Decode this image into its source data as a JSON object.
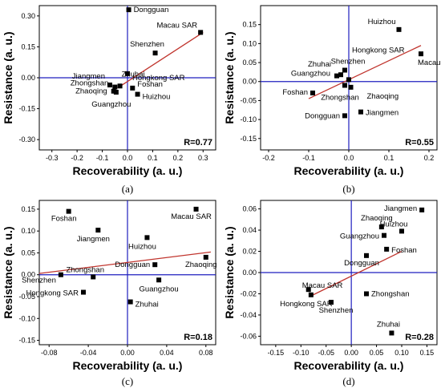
{
  "chart_data": [
    {
      "type": "scatter",
      "panel_label": "(a)",
      "xlabel": "Recoverability (a. u.)",
      "ylabel": "Resistance (a. u.)",
      "xlim": [
        -0.35,
        0.35
      ],
      "ylim": [
        -0.35,
        0.35
      ],
      "xticks": [
        -0.3,
        -0.2,
        -0.1,
        0.0,
        0.1,
        0.2,
        0.3
      ],
      "xtick_labels": [
        "-0.3",
        "-0.2",
        "-0.1",
        "0.0",
        "0.1",
        "0.2",
        "0.3"
      ],
      "yticks": [
        -0.3,
        -0.15,
        0.0,
        0.15,
        0.3
      ],
      "ytick_labels": [
        "-0.30",
        "-0.15",
        "0.00",
        "0.15",
        "0.30"
      ],
      "r_text": "R=0.77",
      "fit": {
        "x": [
          -0.04,
          0.3
        ],
        "y": [
          -0.05,
          0.22
        ]
      },
      "points": [
        {
          "name": "Dongguan",
          "x": 0.005,
          "y": 0.33
        },
        {
          "name": "Macau SAR",
          "x": 0.29,
          "y": 0.22
        },
        {
          "name": "Shenzhen",
          "x": 0.11,
          "y": 0.12
        },
        {
          "name": "Hongkong  SAR",
          "x": 0.0,
          "y": 0.02
        },
        {
          "name": "Jiangmen",
          "x": -0.07,
          "y": -0.035
        },
        {
          "name": "Zhuhai",
          "x": -0.03,
          "y": -0.04
        },
        {
          "name": "Foshan",
          "x": 0.02,
          "y": -0.05
        },
        {
          "name": "Huizhou",
          "x": 0.04,
          "y": -0.08
        },
        {
          "name": "Zhongshan",
          "x": -0.05,
          "y": -0.045
        },
        {
          "name": "Zhaoqing",
          "x": -0.055,
          "y": -0.065
        },
        {
          "name": "Guangzhou",
          "x": -0.045,
          "y": -0.07
        }
      ]
    },
    {
      "type": "scatter",
      "panel_label": "(b)",
      "xlabel": "Recoverability (a. u.)",
      "ylabel": "Resistance (a. u.)",
      "xlim": [
        -0.22,
        0.22
      ],
      "ylim": [
        -0.18,
        0.2
      ],
      "xticks": [
        -0.2,
        -0.1,
        0.0,
        0.1,
        0.2
      ],
      "xtick_labels": [
        "-0.2",
        "-0.1",
        "0.0",
        "0.1",
        "0.2"
      ],
      "yticks": [
        -0.15,
        -0.1,
        -0.05,
        0.0,
        0.05,
        0.1,
        0.15
      ],
      "ytick_labels": [
        "-0.15",
        "-0.10",
        "-0.05",
        "0.00",
        "0.05",
        "0.10",
        "0.15"
      ],
      "r_text": "R=0.55",
      "fit": {
        "x": [
          -0.1,
          0.18
        ],
        "y": [
          -0.045,
          0.095
        ]
      },
      "points": [
        {
          "name": "Huizhou",
          "x": 0.125,
          "y": 0.137
        },
        {
          "name": "Hongkong SAR",
          "x": 0.0,
          "y": 0.005
        },
        {
          "name": "Macau SAR",
          "x": 0.18,
          "y": 0.073
        },
        {
          "name": "Shenzhen",
          "x": -0.01,
          "y": 0.03
        },
        {
          "name": "Zhuhai",
          "x": -0.02,
          "y": 0.018
        },
        {
          "name": "Guangzhou",
          "x": -0.03,
          "y": 0.015
        },
        {
          "name": "Foshan",
          "x": -0.09,
          "y": -0.03
        },
        {
          "name": "Zhongshan",
          "x": -0.01,
          "y": -0.01
        },
        {
          "name": "Zhaoqing",
          "x": 0.005,
          "y": -0.015
        },
        {
          "name": "Jiangmen",
          "x": 0.03,
          "y": -0.08
        },
        {
          "name": "Dongguan",
          "x": -0.01,
          "y": -0.09
        }
      ]
    },
    {
      "type": "scatter",
      "panel_label": "(c)",
      "xlabel": "Recoverability (a. u.)",
      "ylabel": "Resistance (a. u.)",
      "xlim": [
        -0.09,
        0.09
      ],
      "ylim": [
        -0.16,
        0.17
      ],
      "xticks": [
        -0.08,
        -0.04,
        0.0,
        0.04,
        0.08
      ],
      "xtick_labels": [
        "-0.08",
        "-0.04",
        "0.00",
        "0.04",
        "0.08"
      ],
      "yticks": [
        -0.15,
        -0.1,
        -0.05,
        0.0,
        0.05,
        0.1,
        0.15
      ],
      "ytick_labels": [
        "-0.15",
        "-0.10",
        "-0.05",
        "0.00",
        "0.05",
        "0.10",
        "0.15"
      ],
      "r_text": "R=0.18",
      "fit": {
        "x": [
          -0.09,
          0.085
        ],
        "y": [
          0.003,
          0.052
        ]
      },
      "points": [
        {
          "name": "Foshan",
          "x": -0.06,
          "y": 0.145
        },
        {
          "name": "Macau SAR",
          "x": 0.07,
          "y": 0.15
        },
        {
          "name": "Jiangmen",
          "x": -0.03,
          "y": 0.102
        },
        {
          "name": "Huizhou",
          "x": 0.02,
          "y": 0.085
        },
        {
          "name": "Zhaoqing",
          "x": 0.08,
          "y": 0.04
        },
        {
          "name": "Dongguan",
          "x": 0.028,
          "y": 0.023
        },
        {
          "name": "Zhongshan",
          "x": -0.035,
          "y": -0.005
        },
        {
          "name": "Shenzhen",
          "x": -0.068,
          "y": 0.0
        },
        {
          "name": "Guangzhou",
          "x": 0.032,
          "y": -0.012
        },
        {
          "name": "Hongkong SAR",
          "x": -0.045,
          "y": -0.04
        },
        {
          "name": "Zhuhai",
          "x": 0.003,
          "y": -0.062
        }
      ]
    },
    {
      "type": "scatter",
      "panel_label": "(d)",
      "xlabel": "Recoverability (a. u.)",
      "ylabel": "Resistance (a. u.)",
      "xlim": [
        -0.18,
        0.17
      ],
      "ylim": [
        -0.068,
        0.068
      ],
      "xticks": [
        -0.15,
        -0.1,
        -0.05,
        0.0,
        0.05,
        0.1,
        0.15
      ],
      "xtick_labels": [
        "-0.15",
        "-0.10",
        "-0.05",
        "0.00",
        "0.05",
        "0.10",
        "0.15"
      ],
      "yticks": [
        -0.06,
        -0.04,
        -0.02,
        0.0,
        0.02,
        0.04,
        0.06
      ],
      "ytick_labels": [
        "-0.06",
        "-0.04",
        "-0.02",
        "0.00",
        "0.02",
        "0.04",
        "0.06"
      ],
      "r_text": "R=0.28",
      "fit": {
        "x": [
          -0.08,
          0.1
        ],
        "y": [
          -0.022,
          0.02
        ]
      },
      "points": [
        {
          "name": "Jiangmen",
          "x": 0.14,
          "y": 0.059
        },
        {
          "name": "Zhaoqing",
          "x": 0.06,
          "y": 0.043
        },
        {
          "name": "Huizhou",
          "x": 0.1,
          "y": 0.039
        },
        {
          "name": "Guangzhou",
          "x": 0.065,
          "y": 0.035
        },
        {
          "name": "Foshan",
          "x": 0.07,
          "y": 0.022
        },
        {
          "name": "Dongguan",
          "x": 0.03,
          "y": 0.016
        },
        {
          "name": "Macau SAR",
          "x": -0.085,
          "y": -0.016
        },
        {
          "name": "Hongkong SAR",
          "x": -0.08,
          "y": -0.021
        },
        {
          "name": "Shenzhen",
          "x": -0.04,
          "y": -0.028
        },
        {
          "name": "Zhongshan",
          "x": 0.03,
          "y": -0.02
        },
        {
          "name": "Zhuhai",
          "x": 0.08,
          "y": -0.057
        }
      ]
    }
  ]
}
